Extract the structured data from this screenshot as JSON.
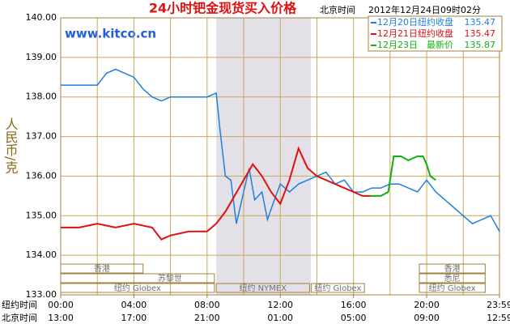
{
  "chart_data": {
    "type": "line",
    "title": "24小时钯金现货买入价格",
    "time_label": "北京时间",
    "timestamp": "2012年12月24日09时02分",
    "site": "www.kitco.cn",
    "ylabel": "人民币/克",
    "xlim": [
      0,
      23.98
    ],
    "ylim": [
      133,
      140
    ],
    "yticks": [
      {
        "value": 140,
        "label": "140.00"
      },
      {
        "value": 139,
        "label": "139.00"
      },
      {
        "value": 138,
        "label": "138.00"
      },
      {
        "value": 137,
        "label": "137.00"
      },
      {
        "value": 136,
        "label": "136.00"
      },
      {
        "value": 135,
        "label": "135.00"
      },
      {
        "value": 134,
        "label": "134.00"
      },
      {
        "value": 133,
        "label": "133.00"
      }
    ],
    "xticks": [
      {
        "value": 0,
        "label": "00:00"
      },
      {
        "value": 4,
        "label": "04:00"
      },
      {
        "value": 8,
        "label": "08:00"
      },
      {
        "value": 12,
        "label": "12:00"
      },
      {
        "value": 16,
        "label": "16:00"
      },
      {
        "value": 20,
        "label": "20:00"
      },
      {
        "value": 23.98,
        "label": "23:59"
      }
    ],
    "xlabel": "纽约时间",
    "x2label": "北京时间",
    "x2ticks": [
      "13:00",
      "17:00",
      "21:00",
      "01:00",
      "05:00",
      "09:00",
      "12:59"
    ],
    "grid": true,
    "sessions": [
      "香港",
      "苏黎世",
      "纽约 Globex",
      "纽约 NYMEX",
      "纽约 Globex",
      "香港",
      "悉尼",
      "纽约 Globex"
    ],
    "series": [
      {
        "name": "12月20日",
        "label": "纽约收盘",
        "last": 135.47,
        "color": "#1e7fe0",
        "x": [
          0,
          1,
          2,
          2.5,
          3,
          3.5,
          4,
          4.5,
          5,
          5.5,
          6,
          7,
          8,
          8.5,
          8.7,
          9,
          9.3,
          9.6,
          10,
          10.3,
          10.6,
          11,
          11.3,
          11.6,
          12,
          12.5,
          13,
          13.5,
          14,
          14.5,
          15,
          15.5,
          16,
          16.5,
          17,
          17.5,
          18,
          18.5,
          19,
          19.5,
          20,
          20.5,
          21,
          21.5,
          22,
          22.5,
          23,
          23.5,
          23.98
        ],
        "values": [
          138.3,
          138.3,
          138.3,
          138.6,
          138.7,
          138.6,
          138.5,
          138.2,
          138.0,
          137.9,
          138.0,
          138.0,
          138.0,
          138.1,
          137.2,
          136.0,
          135.9,
          134.8,
          135.6,
          136.2,
          135.4,
          135.6,
          134.9,
          135.3,
          135.8,
          135.6,
          135.8,
          135.9,
          136.0,
          136.1,
          135.8,
          135.9,
          135.6,
          135.6,
          135.7,
          135.7,
          135.8,
          135.8,
          135.7,
          135.6,
          135.9,
          135.6,
          135.4,
          135.2,
          135.0,
          134.8,
          134.9,
          135.0,
          134.6
        ]
      },
      {
        "name": "12月21日",
        "label": "纽约收盘",
        "last": 135.47,
        "color": "#e01010",
        "x": [
          0,
          1,
          2,
          3,
          4,
          5,
          5.5,
          6,
          7,
          8,
          8.5,
          9,
          9.5,
          10,
          10.5,
          11,
          11.5,
          12,
          12.5,
          13,
          13.5,
          14,
          14.5,
          15,
          15.5,
          16,
          16.5,
          17
        ],
        "values": [
          134.7,
          134.7,
          134.8,
          134.7,
          134.8,
          134.7,
          134.4,
          134.5,
          134.6,
          134.6,
          134.8,
          135.1,
          135.5,
          135.9,
          136.3,
          136.0,
          135.6,
          135.3,
          135.9,
          136.7,
          136.2,
          136.0,
          135.9,
          135.8,
          135.7,
          135.6,
          135.5,
          135.5
        ]
      },
      {
        "name": "12月23日",
        "label": "最新价",
        "last": 135.87,
        "color": "#10b010",
        "x": [
          16.9,
          17.5,
          17.9,
          18.2,
          18.6,
          19,
          19.5,
          19.8,
          20,
          20.2,
          20.5
        ],
        "values": [
          135.5,
          135.5,
          135.6,
          136.5,
          136.5,
          136.4,
          136.5,
          136.5,
          136.3,
          136.0,
          135.9
        ]
      }
    ]
  }
}
